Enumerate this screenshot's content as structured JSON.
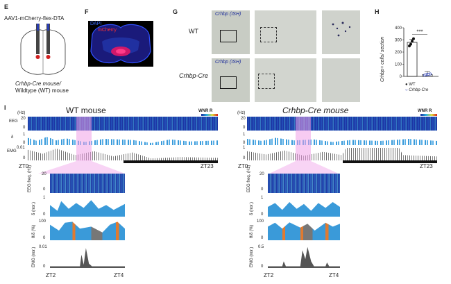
{
  "panels": {
    "E": {
      "label": "E",
      "virus": "AAV1-mCherry-flex-DTA",
      "mouse_line1": "Crhbp-Cre mouse/",
      "mouse_line2": "Wildtype (WT) mouse"
    },
    "F": {
      "label": "F",
      "stain1": "DAPI",
      "stain2": "mCherry"
    },
    "G": {
      "label": "G",
      "ish1": "Crhbp (ISH)",
      "ish2": "Crhbp (ISH)",
      "row1": "WT",
      "row2": "Crhbp-Cre"
    },
    "H": {
      "label": "H",
      "ylabel": "Crhbp+ cells/ section",
      "significance": "***",
      "legend_wt": "WT",
      "legend_cre": "Crhbp-Cre"
    },
    "I": {
      "label": "I",
      "wt_title": "WT mouse",
      "cre_title": "Crhbp-Cre mouse",
      "colorbar_label": "WNR R",
      "colorbar_min": "0",
      "colorbar_max": "1",
      "hz": "(Hz)",
      "eeg_label": "EEG",
      "delta_label": "δ",
      "emg_label": "EMG",
      "eeg_top_tick": "20",
      "eeg_bottom_tick": "0",
      "delta_top_tick": "1",
      "delta_bottom_tick": "0",
      "wt_emg_top_tick": "0.01",
      "cre_emg_top_tick": "1",
      "emg_bottom_tick": "0",
      "zt0": "ZT0",
      "zt23": "ZT23",
      "zt2": "ZT2",
      "zt4": "ZT4",
      "eeg_freq_label": "EEG freq. (Hz)",
      "delta_nor_label": "δ (nor.)",
      "theta_delta_label": "θ/δ (%)",
      "emg_nor_label": "EMG (nor.)",
      "z_eeg_top": "20",
      "z_eeg_bottom": "0",
      "z_delta_top": "1",
      "z_delta_bottom": "0",
      "z_td_top": "100",
      "z_td_bottom": "0",
      "wt_z_emg_top": "0.01",
      "cre_z_emg_top": "0.5",
      "z_emg_bottom": "0"
    }
  },
  "chart_data": {
    "type": "bar",
    "categories": [
      "WT",
      "Crhbp-Cre"
    ],
    "values": [
      280,
      15
    ],
    "xlabel": "",
    "ylabel": "Crhbp+ cells/ section",
    "yticks": [
      0,
      100,
      200,
      300,
      400
    ],
    "ylim": [
      0,
      400
    ],
    "points": {
      "WT": [
        250,
        265,
        290,
        310
      ],
      "Crhbp-Cre": [
        10,
        14,
        16,
        18,
        20
      ]
    },
    "significance": "***"
  },
  "colors": {
    "wt_point": "#111111",
    "cre_point": "#2a3db0",
    "spectrogram": "#1a2a9a",
    "delta": "#3a9ad9",
    "emg": "#555555",
    "highlight": "#f0a0e8",
    "theta_orange": "#e07a30"
  }
}
